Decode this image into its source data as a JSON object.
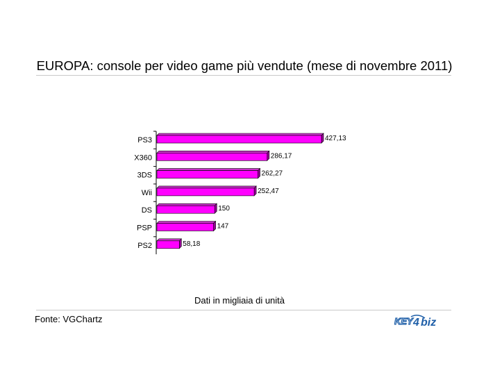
{
  "chart_data": {
    "type": "bar",
    "orientation": "horizontal",
    "title": "EUROPA: console per video game più vendute (mese di novembre 2011)",
    "subtitle": "Dati in migliaia di unità",
    "categories": [
      "PS3",
      "X360",
      "3DS",
      "Wii",
      "DS",
      "PSP",
      "PS2"
    ],
    "values": [
      427.13,
      286.17,
      262.27,
      252.47,
      150,
      147,
      58.18
    ],
    "value_labels": [
      "427,13",
      "286,17",
      "262,27",
      "252,47",
      "150",
      "147",
      "58,18"
    ],
    "xlim": [
      0,
      427.13
    ],
    "bar_color": "#ff00ff",
    "bar_style": "3d",
    "grid": false,
    "legend": "none"
  },
  "footer": {
    "source": "Fonte: VGChartz",
    "logo_text": "KEY4biz"
  },
  "colors": {
    "bar": "#ff00ff",
    "bar_side": "#990099",
    "bar_top": "#cc33cc",
    "logo_blue": "#1f5fa8",
    "rule": "#c8c8c8"
  }
}
